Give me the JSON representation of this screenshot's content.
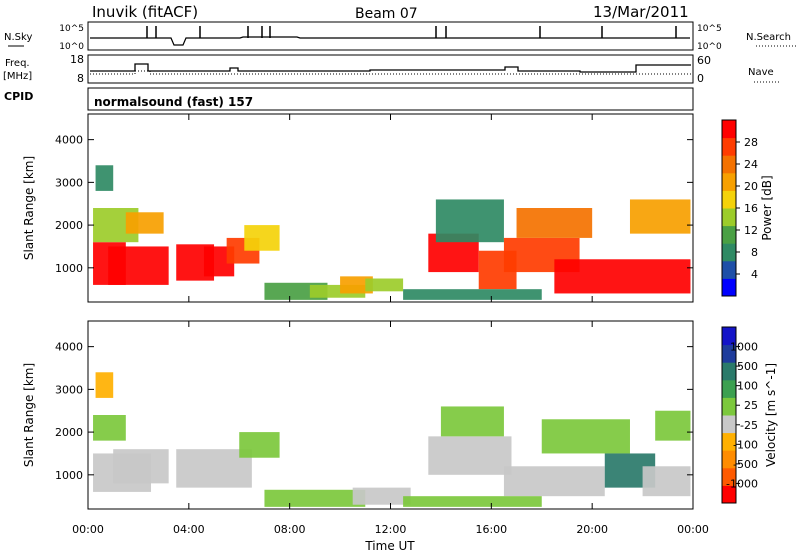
{
  "header": {
    "station": "Inuvik (fitACF)",
    "beam": "Beam 07",
    "date": "13/Mar/2011"
  },
  "status_panels": {
    "nsky_label": "N.Sky",
    "nsky_ticks": [
      "10^5",
      "10^0"
    ],
    "nsearch_label": "N.Search",
    "nsearch_ticks": [
      "10^5",
      "10^0"
    ],
    "freq_label": "Freq.",
    "freq_unit": "[MHz]",
    "freq_ticks": [
      "18",
      "8"
    ],
    "nave_label": "Nave",
    "nave_ticks": [
      "60",
      "0"
    ],
    "cpid_label": "CPID",
    "cpid_value": "normalsound (fast) 157"
  },
  "colors": {
    "power": [
      "#0000ff",
      "#1e4fa8",
      "#2f8a64",
      "#4aa044",
      "#9ccc2a",
      "#f4d20a",
      "#f7a000",
      "#f47200",
      "#ff3c00",
      "#ff0000"
    ],
    "velocity": [
      "#ff0000",
      "#ff5a00",
      "#ff8c00",
      "#ffb000",
      "#c8c8c8",
      "#7cc83c",
      "#3ca050",
      "#2a7a6a",
      "#1e3c9c",
      "#1414c8"
    ]
  },
  "chart_data": [
    {
      "type": "heatmap",
      "name": "power",
      "ylabel": "Slant Range [km]",
      "yticks": [
        1000,
        2000,
        3000,
        4000
      ],
      "ylim": [
        200,
        4600
      ],
      "xlim": [
        0,
        24
      ],
      "colorbar": {
        "label": "Power [dB]",
        "ticks": [
          "4",
          "8",
          "12",
          "16",
          "20",
          "24",
          "28"
        ],
        "range": [
          0,
          30
        ]
      },
      "patches": [
        {
          "x": [
            0.2,
            1.5
          ],
          "y": [
            600,
            1600
          ],
          "level": 28
        },
        {
          "x": [
            0.8,
            3.2
          ],
          "y": [
            600,
            1500
          ],
          "level": 28
        },
        {
          "x": [
            3.5,
            5.0
          ],
          "y": [
            700,
            1550
          ],
          "level": 28
        },
        {
          "x": [
            4.6,
            5.8
          ],
          "y": [
            800,
            1500
          ],
          "level": 27
        },
        {
          "x": [
            5.5,
            6.8
          ],
          "y": [
            1100,
            1700
          ],
          "level": 24
        },
        {
          "x": [
            6.2,
            7.6
          ],
          "y": [
            1400,
            2000
          ],
          "level": 16
        },
        {
          "x": [
            0.2,
            2.0
          ],
          "y": [
            1600,
            2400
          ],
          "level": 12
        },
        {
          "x": [
            1.5,
            3.0
          ],
          "y": [
            1800,
            2300
          ],
          "level": 18
        },
        {
          "x": [
            0.3,
            1.0
          ],
          "y": [
            2800,
            3400
          ],
          "level": 6
        },
        {
          "x": [
            7.0,
            9.5
          ],
          "y": [
            250,
            650
          ],
          "level": 10
        },
        {
          "x": [
            8.8,
            11.0
          ],
          "y": [
            300,
            600
          ],
          "level": 14
        },
        {
          "x": [
            10.0,
            11.3
          ],
          "y": [
            400,
            800
          ],
          "level": 20
        },
        {
          "x": [
            11.0,
            12.5
          ],
          "y": [
            450,
            750
          ],
          "level": 12
        },
        {
          "x": [
            13.5,
            15.5
          ],
          "y": [
            900,
            1800
          ],
          "level": 27
        },
        {
          "x": [
            13.8,
            16.5
          ],
          "y": [
            1600,
            2600
          ],
          "level": 6
        },
        {
          "x": [
            15.5,
            17.0
          ],
          "y": [
            500,
            1400
          ],
          "level": 24
        },
        {
          "x": [
            16.5,
            19.5
          ],
          "y": [
            900,
            1700
          ],
          "level": 26
        },
        {
          "x": [
            17.0,
            20.0
          ],
          "y": [
            1700,
            2400
          ],
          "level": 22
        },
        {
          "x": [
            18.5,
            23.9
          ],
          "y": [
            400,
            1200
          ],
          "level": 28
        },
        {
          "x": [
            21.5,
            23.9
          ],
          "y": [
            1800,
            2600
          ],
          "level": 20
        },
        {
          "x": [
            12.5,
            18.0
          ],
          "y": [
            250,
            500
          ],
          "level": 8
        }
      ]
    },
    {
      "type": "heatmap",
      "name": "velocity",
      "ylabel": "Slant Range [km]",
      "xlabel": "Time UT",
      "xticks": [
        "00:00",
        "04:00",
        "08:00",
        "12:00",
        "16:00",
        "20:00",
        "00:00"
      ],
      "yticks": [
        1000,
        2000,
        3000,
        4000
      ],
      "ylim": [
        200,
        4600
      ],
      "xlim": [
        0,
        24
      ],
      "colorbar": {
        "label": "Velocity [m s^-1]",
        "ticks": [
          "1000",
          "500",
          "100",
          "25",
          "-25",
          "-100",
          "-500",
          "-1000"
        ],
        "range": [
          -1200,
          1200
        ]
      },
      "patches": [
        {
          "x": [
            0.2,
            2.5
          ],
          "y": [
            600,
            1500
          ],
          "level": -120
        },
        {
          "x": [
            1.0,
            3.2
          ],
          "y": [
            800,
            1600
          ],
          "level": -150
        },
        {
          "x": [
            3.5,
            6.5
          ],
          "y": [
            700,
            1600
          ],
          "level": -110
        },
        {
          "x": [
            6.0,
            7.6
          ],
          "y": [
            1400,
            2000
          ],
          "level": 60
        },
        {
          "x": [
            0.2,
            1.5
          ],
          "y": [
            1800,
            2400
          ],
          "level": 0
        },
        {
          "x": [
            0.3,
            1.0
          ],
          "y": [
            2800,
            3400
          ],
          "level": -300
        },
        {
          "x": [
            7.0,
            11.0
          ],
          "y": [
            250,
            650
          ],
          "level": 200
        },
        {
          "x": [
            10.5,
            12.8
          ],
          "y": [
            300,
            700
          ],
          "level": -80
        },
        {
          "x": [
            13.5,
            16.8
          ],
          "y": [
            1000,
            1900
          ],
          "level": -130
        },
        {
          "x": [
            14.0,
            16.5
          ],
          "y": [
            1900,
            2600
          ],
          "level": 60
        },
        {
          "x": [
            16.5,
            20.5
          ],
          "y": [
            500,
            1200
          ],
          "level": -120
        },
        {
          "x": [
            18.0,
            21.5
          ],
          "y": [
            1500,
            2300
          ],
          "level": 0
        },
        {
          "x": [
            20.5,
            22.5
          ],
          "y": [
            700,
            1500
          ],
          "level": 700
        },
        {
          "x": [
            22.0,
            23.9
          ],
          "y": [
            500,
            1200
          ],
          "level": -110
        },
        {
          "x": [
            22.5,
            23.9
          ],
          "y": [
            1800,
            2500
          ],
          "level": 0
        },
        {
          "x": [
            12.5,
            18.0
          ],
          "y": [
            250,
            500
          ],
          "level": 150
        }
      ]
    }
  ]
}
